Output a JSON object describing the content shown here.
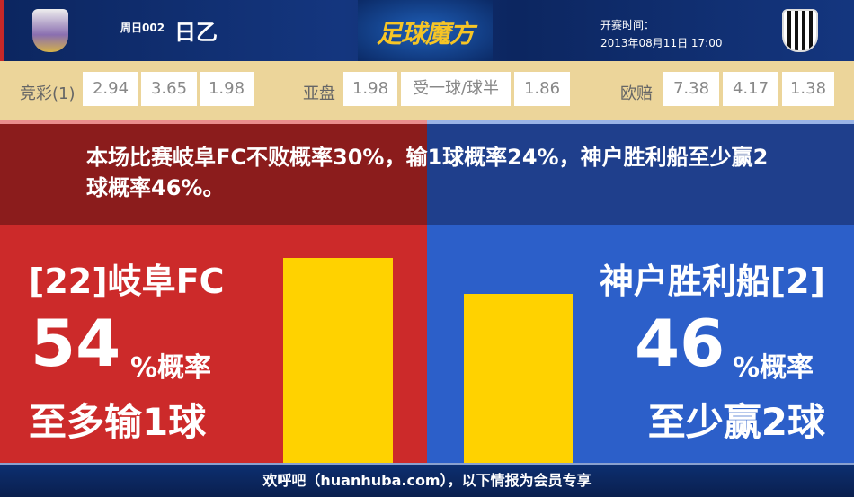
{
  "header": {
    "match_no": "周日002",
    "league": "日乙",
    "brand": "足球魔方",
    "kickoff_label": "开赛时间：",
    "kickoff_time": "2013年08月11日 17:00",
    "home_logo": "FC GIFU",
    "away_logo": "VISSEL"
  },
  "odds": {
    "jingcai_label": "竞彩(1)",
    "jingcai": [
      "2.94",
      "3.65",
      "1.98"
    ],
    "asian_label": "亚盘",
    "asian": [
      "1.98",
      "受一球/球半",
      "1.86"
    ],
    "euro_label": "欧赔",
    "euro": [
      "7.38",
      "4.17",
      "1.38"
    ]
  },
  "statement": "本场比赛岐阜FC不败概率30%，输1球概率24%，神户胜利船至少赢2球概率46%。",
  "home": {
    "name": "[22]岐阜FC",
    "pct": "54",
    "pct_suffix": "%概率",
    "outcome": "至多输1球",
    "color": "#cc2a2a"
  },
  "away": {
    "name": "神户胜利船[2]",
    "pct": "46",
    "pct_suffix": "%概率",
    "outcome": "至少赢2球",
    "color": "#2c5fc9"
  },
  "bar_color": "#ffd200",
  "footer": "欢呼吧（huanhuba.com），以下情报为会员专享"
}
